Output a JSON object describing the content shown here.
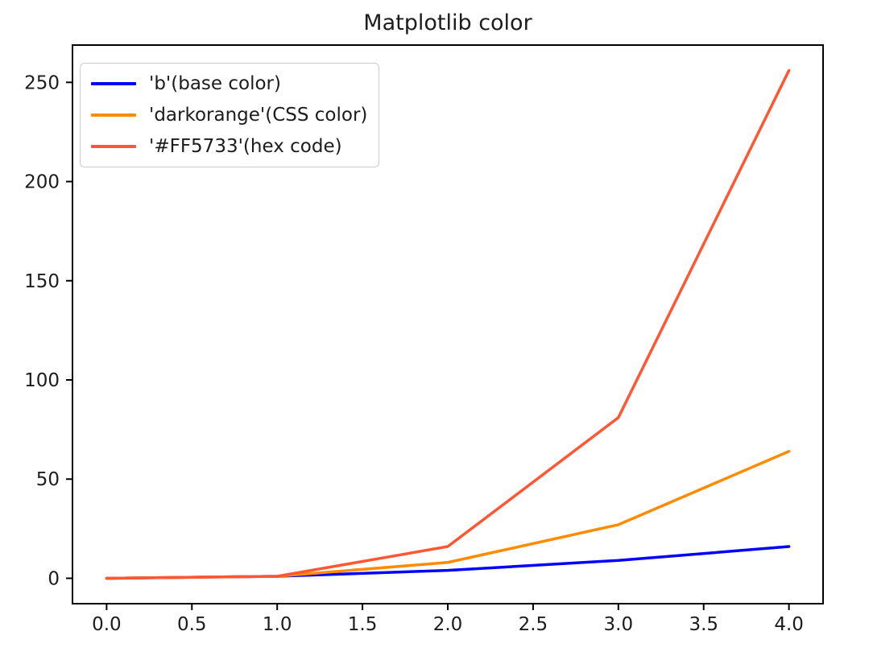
{
  "figure": {
    "background": "#ffffff"
  },
  "chart_data": {
    "type": "line",
    "title": "Matplotlib color",
    "xlabel": "",
    "ylabel": "",
    "x": [
      0,
      1,
      2,
      3,
      4
    ],
    "series": [
      {
        "name": "'b'(base color)",
        "color": "#0000ff",
        "values": [
          0,
          1,
          4,
          9,
          16
        ]
      },
      {
        "name": "'darkorange'(CSS color)",
        "color": "#ff8c00",
        "values": [
          0,
          1,
          8,
          27,
          64
        ]
      },
      {
        "name": "'#FF5733'(hex code)",
        "color": "#ff5733",
        "values": [
          0,
          1,
          16,
          81,
          256
        ]
      }
    ],
    "xlim": [
      -0.2,
      4.2
    ],
    "ylim": [
      -12.8,
      268.8
    ],
    "x_tick_values": [
      0,
      0.5,
      1,
      1.5,
      2,
      2.5,
      3,
      3.5,
      4
    ],
    "x_tick_labels": [
      "0.0",
      "0.5",
      "1.0",
      "1.5",
      "2.0",
      "2.5",
      "3.0",
      "3.5",
      "4.0"
    ],
    "y_tick_values": [
      0,
      50,
      100,
      150,
      200,
      250
    ],
    "y_tick_labels": [
      "0",
      "50",
      "100",
      "150",
      "200",
      "250"
    ],
    "grid": false,
    "legend_position": "upper left",
    "axis_color": "#000000",
    "text_color": "#1c1c1c"
  }
}
